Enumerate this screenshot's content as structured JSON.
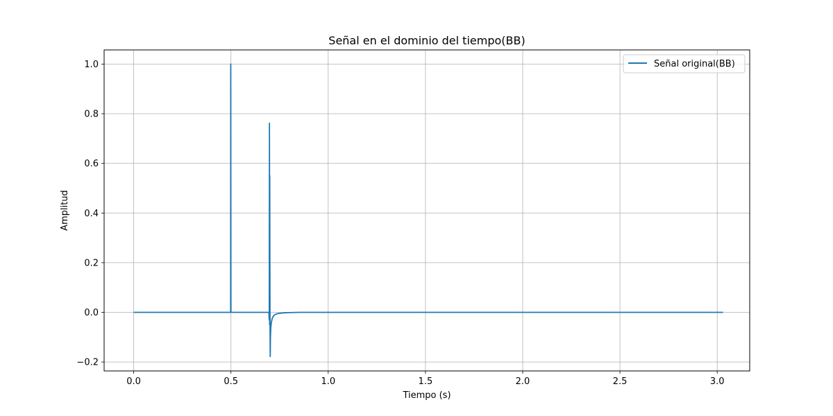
{
  "chart_data": {
    "type": "line",
    "title": "Señal en el dominio del tiempo(BB)",
    "xlabel": "Tiempo (s)",
    "ylabel": "Amplitud",
    "xlim": [
      -0.152,
      3.167
    ],
    "ylim": [
      -0.236,
      1.057
    ],
    "grid": true,
    "legend_position": "top-right",
    "x_ticks": [
      0.0,
      0.5,
      1.0,
      1.5,
      2.0,
      2.5,
      3.0
    ],
    "x_tick_labels": [
      "0.0",
      "0.5",
      "1.0",
      "1.5",
      "2.0",
      "2.5",
      "3.0"
    ],
    "y_ticks": [
      -0.2,
      0.0,
      0.2,
      0.4,
      0.6,
      0.8,
      1.0
    ],
    "y_tick_labels": [
      "−0.2",
      "0.0",
      "0.2",
      "0.4",
      "0.6",
      "0.8",
      "1.0"
    ],
    "series": [
      {
        "name": "Señal original(BB)",
        "color": "#1f77b4",
        "x": [
          0.0,
          0.497,
          0.4985,
          0.499,
          0.5,
          0.5005,
          0.501,
          0.503,
          0.695,
          0.697,
          0.698,
          0.699,
          0.6995,
          0.7,
          0.7005,
          0.701,
          0.7015,
          0.702,
          0.7025,
          0.703,
          0.705,
          0.708,
          0.712,
          0.718,
          0.725,
          0.735,
          0.75,
          0.77,
          0.8,
          0.85,
          1.0,
          1.5,
          2.0,
          2.5,
          2.6,
          3.03
        ],
        "y": [
          0.0,
          0.0,
          0.0,
          1.0,
          0.0,
          0.0,
          0.0,
          0.0,
          0.0,
          -0.03,
          0.762,
          -0.05,
          0.55,
          0.3,
          0.1,
          -0.05,
          -0.12,
          -0.178,
          -0.14,
          -0.1,
          -0.06,
          -0.04,
          -0.025,
          -0.015,
          -0.01,
          -0.006,
          -0.004,
          -0.002,
          -0.001,
          0.0,
          0.0,
          0.0,
          0.0,
          0.0,
          0.0,
          0.0
        ]
      }
    ]
  }
}
